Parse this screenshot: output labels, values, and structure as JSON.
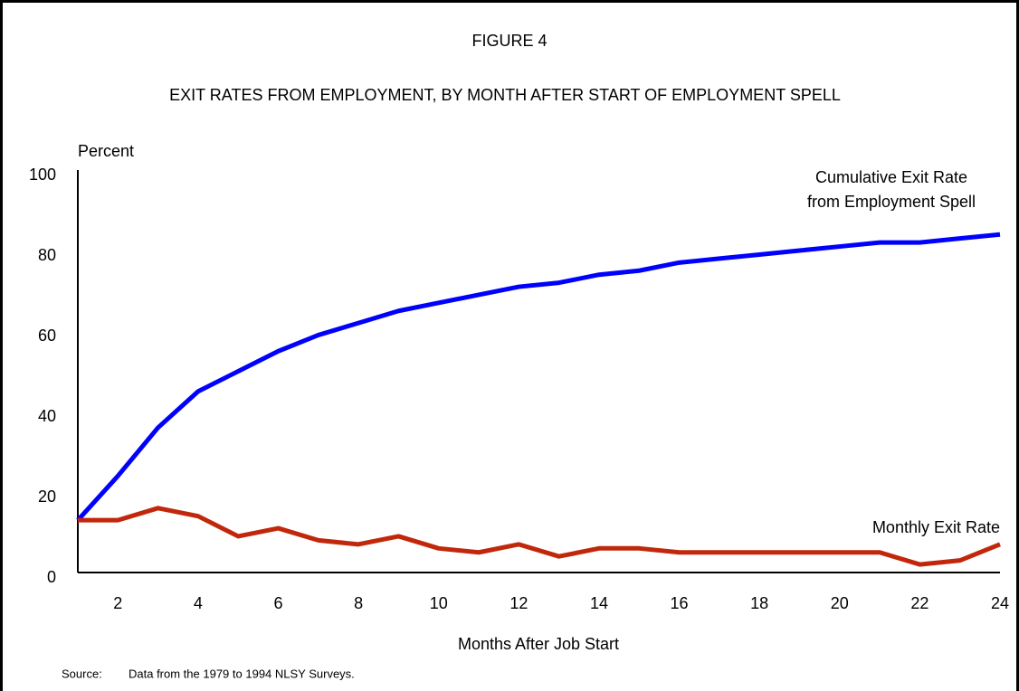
{
  "chart_data": {
    "type": "line",
    "title": "FIGURE 4",
    "subtitle": "EXIT RATES FROM EMPLOYMENT, BY MONTH AFTER START OF EMPLOYMENT SPELL",
    "y_label": "Percent",
    "x_label": "Months After Job Start",
    "source_label": "Source:",
    "source": "Data from the 1979 to 1994 NLSY Surveys.",
    "x": [
      1,
      2,
      3,
      4,
      5,
      6,
      7,
      8,
      9,
      10,
      11,
      12,
      13,
      14,
      15,
      16,
      17,
      18,
      19,
      20,
      21,
      22,
      23,
      24
    ],
    "series": [
      {
        "label": [
          "Cumulative Exit Rate",
          "from Employment Spell"
        ],
        "color": "#0000ff",
        "values": [
          13,
          24,
          36,
          45,
          50,
          55,
          59,
          62,
          65,
          67,
          69,
          71,
          72,
          74,
          75,
          77,
          78,
          79,
          80,
          81,
          82,
          82,
          83,
          84
        ]
      },
      {
        "label": [
          "Monthly Exit Rate"
        ],
        "color": "#c1270a",
        "values": [
          13,
          13,
          16,
          14,
          9,
          11,
          8,
          7,
          9,
          6,
          5,
          7,
          4,
          6,
          6,
          5,
          5,
          5,
          5,
          5,
          5,
          2,
          3,
          7
        ]
      }
    ],
    "xlim": [
      1,
      24
    ],
    "xticks": [
      2,
      4,
      6,
      8,
      10,
      12,
      14,
      16,
      18,
      20,
      22,
      24
    ],
    "ylim": [
      0,
      100
    ],
    "yticks": [
      0,
      20,
      40,
      60,
      80,
      100
    ]
  }
}
